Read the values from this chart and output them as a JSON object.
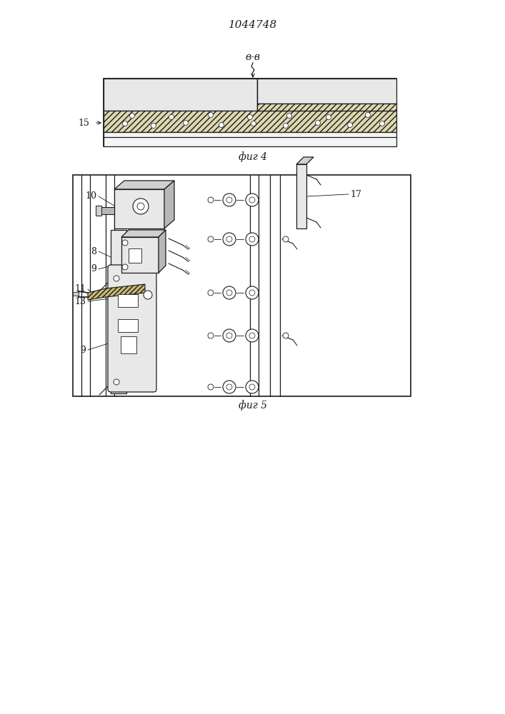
{
  "title": "1044748",
  "fig4_label": "фиг 4",
  "fig5_label": "фиг 5",
  "section_label": "в-в",
  "label_15": "15",
  "label_8": "8",
  "label_9a": "9",
  "label_9b": "9",
  "label_10": "10",
  "label_11": "11",
  "label_13": "13",
  "label_17": "17",
  "bg_color": "#ffffff",
  "line_color": "#1a1a1a",
  "gray_light": "#e8e8e8",
  "gray_mid": "#d0d0d0",
  "gray_dark": "#b8b8b8",
  "hatch_fill": "#ddd8b0"
}
